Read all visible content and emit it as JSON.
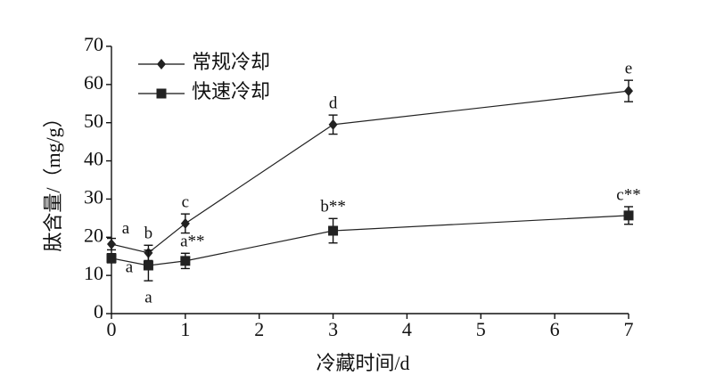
{
  "chart_data": {
    "type": "line",
    "xlabel": "冷藏时间/d",
    "ylabel": "肽含量/（mg/g）",
    "x": [
      0,
      0.5,
      1,
      3,
      7
    ],
    "series": [
      {
        "name": "常规冷却",
        "color": "#222222",
        "marker": "diamond",
        "values": [
          18.2,
          15.9,
          23.6,
          49.5,
          58.3
        ],
        "errors": [
          1.5,
          2,
          2.5,
          2.5,
          2.8
        ],
        "labels": [
          "a",
          "b",
          "c",
          "d",
          "e"
        ]
      },
      {
        "name": "快速冷却",
        "color": "#222222",
        "marker": "square",
        "values": [
          14.5,
          12.6,
          13.8,
          21.7,
          25.7
        ],
        "errors": [
          1.2,
          4,
          2,
          3.2,
          2.3
        ],
        "labels": [
          "a",
          "a",
          "a**",
          "b**",
          "c**"
        ]
      }
    ],
    "xlim": [
      0,
      7
    ],
    "xticks": [
      0,
      1,
      2,
      3,
      4,
      5,
      6,
      7
    ],
    "ylim": [
      0,
      70
    ],
    "yticks": [
      0,
      10,
      20,
      30,
      40,
      50,
      60,
      70
    ],
    "legend": "upper-left"
  }
}
